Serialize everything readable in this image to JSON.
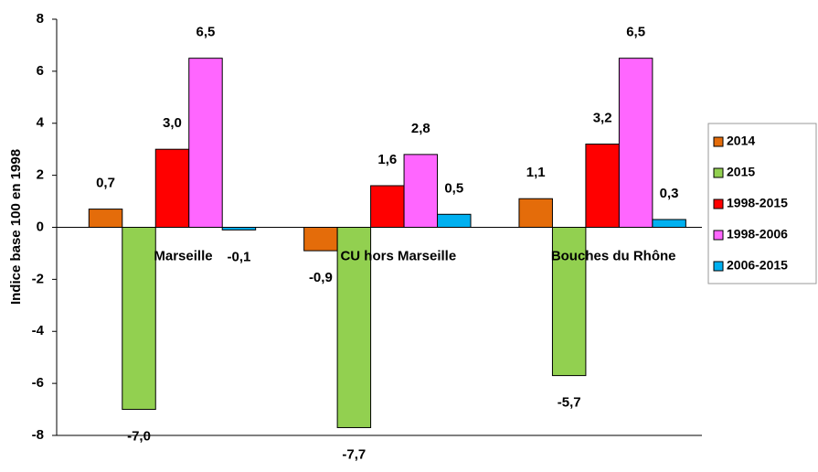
{
  "chart_data": {
    "type": "bar",
    "y_label": "Indice base 100 en 1998",
    "categories": [
      "Marseille",
      "CU hors Marseille",
      "Bouches du Rhône"
    ],
    "series": [
      {
        "name": "2014",
        "color": "#e46c0a",
        "values": [
          0.7,
          -0.9,
          1.1
        ],
        "value_labels": [
          "0,7",
          "-0,9",
          "1,1"
        ]
      },
      {
        "name": "2015",
        "color": "#92d050",
        "values": [
          -7.0,
          -7.7,
          -5.7
        ],
        "value_labels": [
          "-7,0",
          "-7,7",
          "-5,7"
        ]
      },
      {
        "name": "1998-2015",
        "color": "#ff0000",
        "values": [
          3.0,
          1.6,
          3.2
        ],
        "value_labels": [
          "3,0",
          "1,6",
          "3,2"
        ]
      },
      {
        "name": "1998-2006",
        "color": "#ff66ff",
        "values": [
          6.5,
          2.8,
          6.5
        ],
        "value_labels": [
          "6,5",
          "2,8",
          "6,5"
        ]
      },
      {
        "name": "2006-2015",
        "color": "#00b0f0",
        "values": [
          -0.1,
          0.5,
          0.3
        ],
        "value_labels": [
          "-0,1",
          "0,5",
          "0,3"
        ]
      }
    ],
    "ylim": [
      -8,
      8
    ],
    "yticks": [
      -8,
      -6,
      -4,
      -2,
      0,
      2,
      4,
      6,
      8
    ],
    "legend": "right"
  }
}
